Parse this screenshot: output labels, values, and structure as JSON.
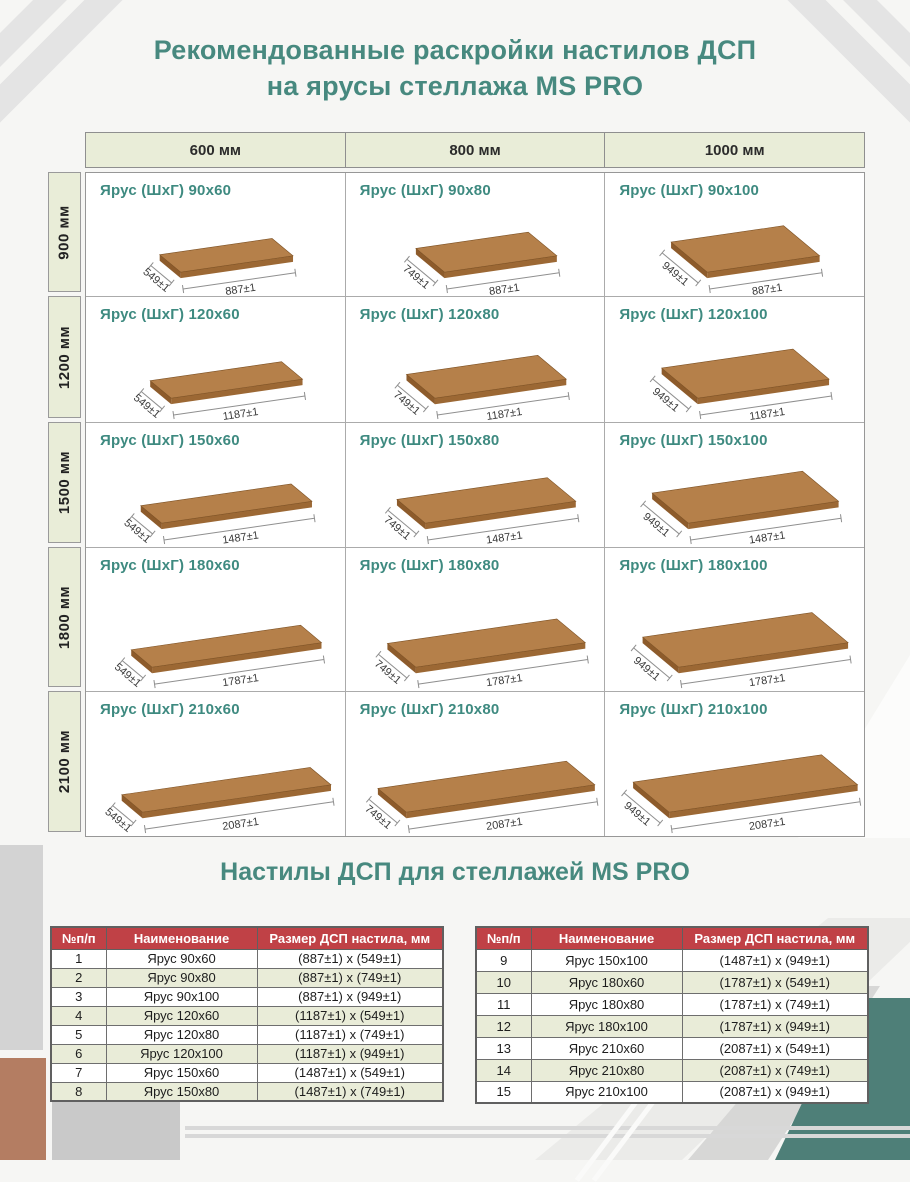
{
  "page": {
    "title_line1": "Рекомендованные раскройки настилов ДСП",
    "title_line2": "на ярусы стеллажа MS PRO",
    "section2_title": "Настилы ДСП для стеллажей MS PRO"
  },
  "grid": {
    "col_headers": [
      "600 мм",
      "800 мм",
      "1000 мм"
    ],
    "row_headers": [
      "900 мм",
      "1200 мм",
      "1500 мм",
      "1800 мм",
      "2100 мм"
    ],
    "cells": [
      {
        "label": "Ярус (ШхГ) 90x60",
        "width_mm": 887,
        "depth_mm": 549,
        "width_label": "887±1",
        "depth_label": "549±1"
      },
      {
        "label": "Ярус (ШхГ) 90x80",
        "width_mm": 887,
        "depth_mm": 749,
        "width_label": "887±1",
        "depth_label": "749±1"
      },
      {
        "label": "Ярус (ШхГ) 90x100",
        "width_mm": 887,
        "depth_mm": 949,
        "width_label": "887±1",
        "depth_label": "949±1"
      },
      {
        "label": "Ярус (ШхГ) 120x60",
        "width_mm": 1187,
        "depth_mm": 549,
        "width_label": "1187±1",
        "depth_label": "549±1"
      },
      {
        "label": "Ярус (ШхГ) 120x80",
        "width_mm": 1187,
        "depth_mm": 749,
        "width_label": "1187±1",
        "depth_label": "749±1"
      },
      {
        "label": "Ярус (ШхГ) 120x100",
        "width_mm": 1187,
        "depth_mm": 949,
        "width_label": "1187±1",
        "depth_label": "949±1"
      },
      {
        "label": "Ярус (ШхГ) 150x60",
        "width_mm": 1487,
        "depth_mm": 549,
        "width_label": "1487±1",
        "depth_label": "549±1"
      },
      {
        "label": "Ярус (ШхГ) 150x80",
        "width_mm": 1487,
        "depth_mm": 749,
        "width_label": "1487±1",
        "depth_label": "749±1"
      },
      {
        "label": "Ярус (ШхГ) 150x100",
        "width_mm": 1487,
        "depth_mm": 949,
        "width_label": "1487±1",
        "depth_label": "949±1"
      },
      {
        "label": "Ярус (ШхГ) 180x60",
        "width_mm": 1787,
        "depth_mm": 549,
        "width_label": "1787±1",
        "depth_label": "549±1"
      },
      {
        "label": "Ярус (ШхГ) 180x80",
        "width_mm": 1787,
        "depth_mm": 749,
        "width_label": "1787±1",
        "depth_label": "749±1"
      },
      {
        "label": "Ярус (ШхГ) 180x100",
        "width_mm": 1787,
        "depth_mm": 949,
        "width_label": "1787±1",
        "depth_label": "949±1"
      },
      {
        "label": "Ярус (ШхГ) 210x60",
        "width_mm": 2087,
        "depth_mm": 549,
        "width_label": "2087±1",
        "depth_label": "549±1"
      },
      {
        "label": "Ярус (ШхГ) 210x80",
        "width_mm": 2087,
        "depth_mm": 749,
        "width_label": "2087±1",
        "depth_label": "749±1"
      },
      {
        "label": "Ярус (ШхГ) 210x100",
        "width_mm": 2087,
        "depth_mm": 949,
        "width_label": "2087±1",
        "depth_label": "949±1"
      }
    ]
  },
  "tables": {
    "headers": [
      "№п/п",
      "Наименование",
      "Размер ДСП настила, мм"
    ],
    "left_rows": [
      [
        "1",
        "Ярус 90x60",
        "(887±1) x (549±1)"
      ],
      [
        "2",
        "Ярус 90x80",
        "(887±1) x (749±1)"
      ],
      [
        "3",
        "Ярус 90x100",
        "(887±1) x (949±1)"
      ],
      [
        "4",
        "Ярус 120x60",
        "(1187±1) x (549±1)"
      ],
      [
        "5",
        "Ярус 120x80",
        "(1187±1) x (749±1)"
      ],
      [
        "6",
        "Ярус 120x100",
        "(1187±1) x (949±1)"
      ],
      [
        "7",
        "Ярус 150x60",
        "(1487±1) x (549±1)"
      ],
      [
        "8",
        "Ярус 150x80",
        "(1487±1) x (749±1)"
      ]
    ],
    "right_rows": [
      [
        "9",
        "Ярус 150x100",
        "(1487±1) x (949±1)"
      ],
      [
        "10",
        "Ярус 180x60",
        "(1787±1) x (549±1)"
      ],
      [
        "11",
        "Ярус 180x80",
        "(1787±1) x (749±1)"
      ],
      [
        "12",
        "Ярус 180x100",
        "(1787±1) x (949±1)"
      ],
      [
        "13",
        "Ярус 210x60",
        "(2087±1) x (549±1)"
      ],
      [
        "14",
        "Ярус 210x80",
        "(2087±1) x (749±1)"
      ],
      [
        "15",
        "Ярус 210x100",
        "(2087±1) x (949±1)"
      ]
    ]
  },
  "colors": {
    "title_teal": "#47897f",
    "label_teal": "#3e8a80",
    "header_green": "#e9edd8",
    "row_alt_green": "#e9ecd8",
    "table_header_red": "#c04146",
    "board_brown_top": "#b5804a",
    "board_brown_front": "#9c6834",
    "board_brown_side": "#8d5b2b",
    "corner_teal": "#4e7f78",
    "terracotta": "#b47d62"
  }
}
